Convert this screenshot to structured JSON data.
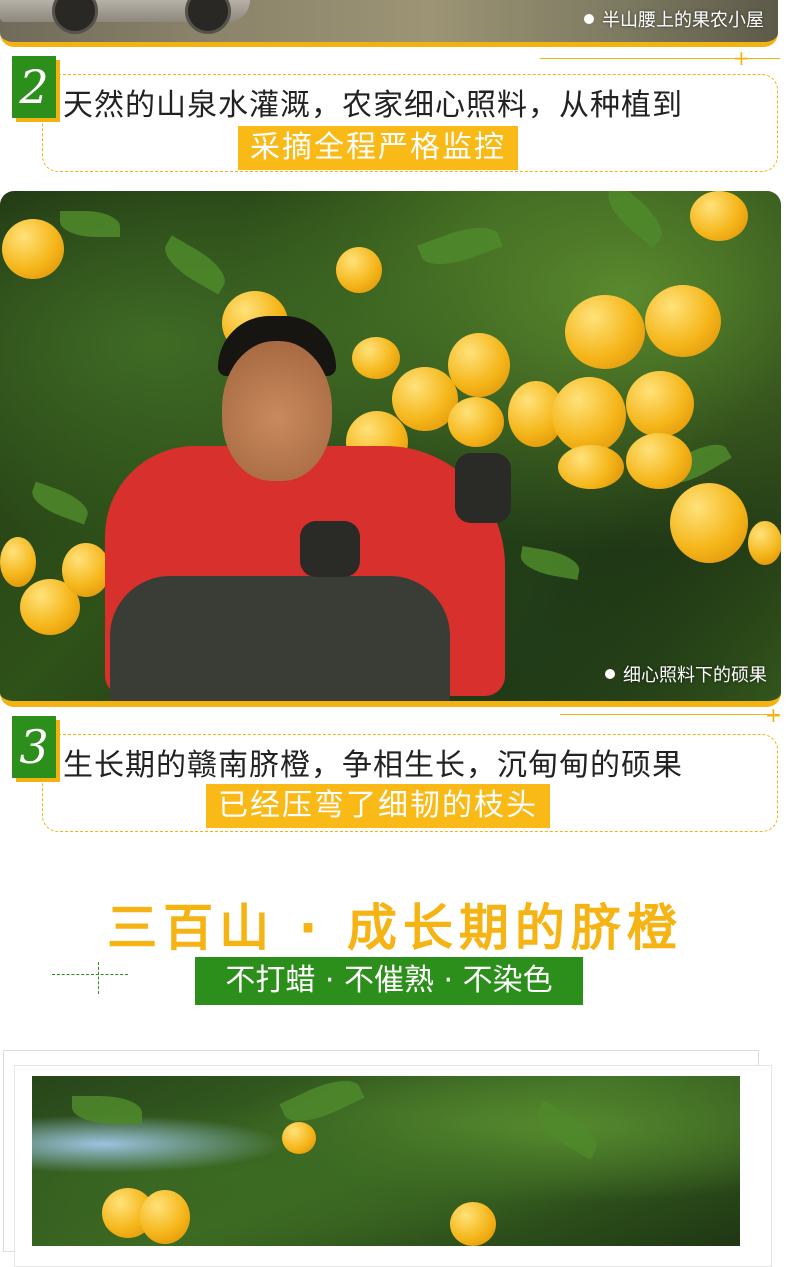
{
  "photo1": {
    "caption": "半山腰上的果农小屋"
  },
  "step2": {
    "number": "2",
    "line": "天然的山泉水灌溉，农家细心照料，从种植到",
    "highlight": "采摘全程严格监控"
  },
  "photo2": {
    "caption": "细心照料下的硕果"
  },
  "step3": {
    "number": "3",
    "line": "生长期的赣南脐橙，争相生长，沉甸甸的硕果",
    "highlight": "已经压弯了细韧的枝头"
  },
  "section": {
    "title": "三百山 · 成长期的脐橙",
    "subtitle": "不打蜡 · 不催熟 · 不染色"
  },
  "colors": {
    "accent_yellow": "#f9b916",
    "badge_green": "#2d8f1b",
    "title_orange": "#f5b314"
  },
  "icons": [
    "dot-bullet-icon",
    "plus-deco-icon"
  ]
}
